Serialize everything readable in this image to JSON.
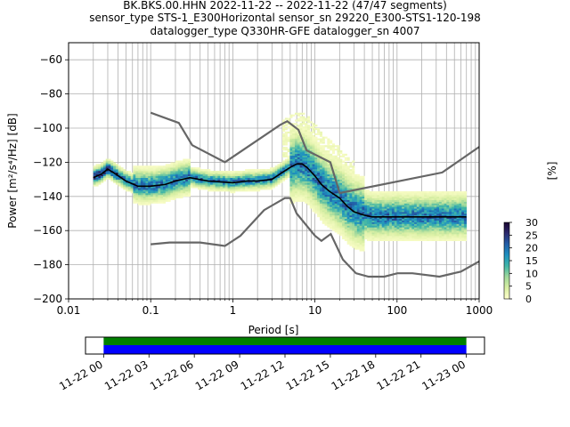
{
  "chart_data": [
    {
      "type": "heatmap",
      "title_lines": [
        "BK.BKS.00.HHN   2022-11-22 -- 2022-11-22  (47/47 segments)",
        "sensor_type STS-1_E300Horizontal sensor_sn 29220_E300-STS1-120-198",
        "datalogger_type Q330HR-GFE datalogger_sn 4007"
      ],
      "xlabel": "Period [s]",
      "ylabel": "Power [m²/s⁴/Hz] [dB]",
      "xscale": "log",
      "xlim": [
        0.01,
        1000
      ],
      "ylim": [
        -200,
        -50
      ],
      "grid": true,
      "x_tick_labels": [
        "0.01",
        "0.1",
        "1",
        "10",
        "100",
        "1000"
      ],
      "x_tick_values": [
        0.01,
        0.1,
        1,
        10,
        100,
        1000
      ],
      "y_tick_values": [
        -200,
        -180,
        -160,
        -140,
        -120,
        -100,
        -80,
        -60
      ],
      "y_tick_labels": [
        "−200",
        "−180",
        "−160",
        "−140",
        "−120",
        "−100",
        "−80",
        "−60"
      ],
      "noise_model_high": {
        "name": "",
        "color": "#666666",
        "x": [
          0.1,
          0.22,
          0.32,
          0.8,
          3.8,
          4.6,
          6.3,
          7.9,
          15.4,
          20,
          354.8,
          1000
        ],
        "y": [
          -91,
          -97,
          -110,
          -120,
          -98,
          -96,
          -101,
          -113,
          -120,
          -138,
          -126,
          -111
        ]
      },
      "noise_model_low": {
        "name": "",
        "color": "#666666",
        "x": [
          0.1,
          0.17,
          0.4,
          0.8,
          1.24,
          2.4,
          4.3,
          5.0,
          6.0,
          10,
          12,
          15.6,
          21.9,
          31.6,
          45,
          70,
          101,
          154,
          328,
          600,
          1000
        ],
        "y": [
          -168,
          -167,
          -167,
          -169,
          -163,
          -148,
          -141,
          -141,
          -150,
          -163,
          -166,
          -162,
          -177,
          -185,
          -187,
          -187,
          -185,
          -185,
          -187,
          -184,
          -178
        ]
      },
      "mean_curve": {
        "name": "",
        "color": "#000000",
        "x": [
          0.02,
          0.025,
          0.03,
          0.035,
          0.05,
          0.07,
          0.1,
          0.15,
          0.2,
          0.3,
          0.5,
          1,
          1.5,
          2,
          3,
          4,
          5,
          6,
          7,
          8,
          10,
          12,
          15,
          20,
          25,
          30,
          40,
          50,
          70,
          100,
          150,
          200,
          300,
          400,
          500,
          700
        ],
        "y": [
          -129,
          -127,
          -124,
          -126,
          -131,
          -134,
          -134,
          -133,
          -131,
          -129,
          -131,
          -132,
          -131,
          -131,
          -130,
          -126,
          -123,
          -121,
          -121,
          -123,
          -128,
          -133,
          -137,
          -141,
          -146,
          -149,
          -151,
          -152,
          -152,
          -152,
          -152,
          -152,
          -152,
          -152,
          -152,
          -152
        ]
      },
      "colorbar": {
        "label": "[%]",
        "min": 0,
        "max": 30,
        "tick_values": [
          0,
          5,
          10,
          15,
          20,
          25,
          30
        ],
        "tick_labels": [
          "0",
          "5",
          "10",
          "15",
          "20",
          "25",
          "30"
        ],
        "colormap_stops": [
          "#ffffcc",
          "#d9efa3",
          "#a1d99b",
          "#41b6a6",
          "#1d91c0",
          "#225ea8",
          "#2c2a6e",
          "#1a0530"
        ]
      }
    },
    {
      "type": "timeline",
      "tick_labels": [
        "11-22 00",
        "11-22 03",
        "11-22 06",
        "11-22 09",
        "11-22 12",
        "11-22 15",
        "11-22 18",
        "11-22 21",
        "11-23 00"
      ],
      "tick_hours": [
        0,
        3,
        6,
        9,
        12,
        15,
        18,
        21,
        24
      ],
      "range_hours": [
        -1.2,
        25.2
      ],
      "coverage_hours": [
        0,
        24
      ],
      "bar_colors": {
        "top": "#008000",
        "bottom": "#0000ff"
      }
    }
  ]
}
